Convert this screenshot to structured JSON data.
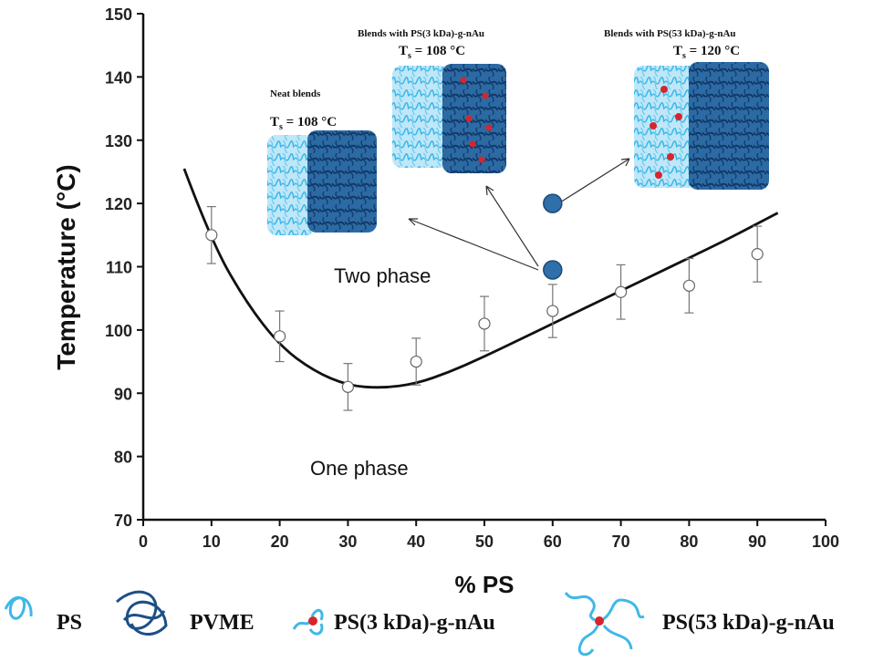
{
  "chart_data": {
    "type": "scatter",
    "xlabel": "% PS",
    "ylabel": "Temperature (°C)",
    "xlim": [
      0,
      100
    ],
    "ylim": [
      70,
      150
    ],
    "x_ticks": [
      0,
      10,
      20,
      30,
      40,
      50,
      60,
      70,
      80,
      90,
      100
    ],
    "y_ticks": [
      70,
      80,
      90,
      100,
      110,
      120,
      130,
      140,
      150
    ],
    "grid": false,
    "series": [
      {
        "kind": "points_with_error",
        "x": [
          10,
          20,
          30,
          40,
          50,
          60,
          70,
          80,
          90
        ],
        "y": [
          115,
          99,
          91,
          95,
          101,
          103,
          106,
          107,
          112
        ],
        "err": [
          4.5,
          4,
          3.7,
          3.7,
          4.3,
          4.2,
          4.3,
          4.3,
          4.4
        ],
        "marker": "open-circle"
      },
      {
        "kind": "fit_curve",
        "x": [
          6,
          10,
          15,
          20,
          25,
          30,
          35,
          40,
          45,
          50,
          55,
          60,
          65,
          70,
          75,
          80,
          85,
          90,
          93
        ],
        "y": [
          125.5,
          114,
          104.5,
          97.5,
          93.5,
          91.2,
          90.8,
          91.5,
          93.4,
          95.8,
          98.4,
          101,
          103.6,
          106.2,
          108.8,
          111.4,
          114,
          116.8,
          118.5
        ]
      },
      {
        "kind": "highlight_points",
        "x": [
          60,
          60
        ],
        "y": [
          109.5,
          120
        ],
        "color": "#2f6faa"
      }
    ],
    "annotations": {
      "two_phase": "Two phase",
      "one_phase": "One phase"
    },
    "insets": [
      {
        "title": "Neat blends",
        "ts": "T",
        "ts_sub": "s",
        "ts_value": " = 108 °C"
      },
      {
        "title": "Blends with PS(3 kDa)-g-nAu",
        "ts": "T",
        "ts_sub": "s",
        "ts_value": " = 108 °C"
      },
      {
        "title": "Blends with PS(53 kDa)-g-nAu",
        "ts": "T",
        "ts_sub": "s",
        "ts_value": " =  120 °C"
      }
    ],
    "legend": {
      "placement": "bottom",
      "items": [
        "PS",
        "PVME",
        "PS(3 kDa)-g-nAu",
        "PS(53 kDa)-g-nAu"
      ]
    },
    "colors": {
      "ps": "#3fb8e8",
      "pvme": "#1d4f86",
      "gold": "#d6262c",
      "marker": "#2f6faa",
      "curve": "#111111"
    }
  }
}
